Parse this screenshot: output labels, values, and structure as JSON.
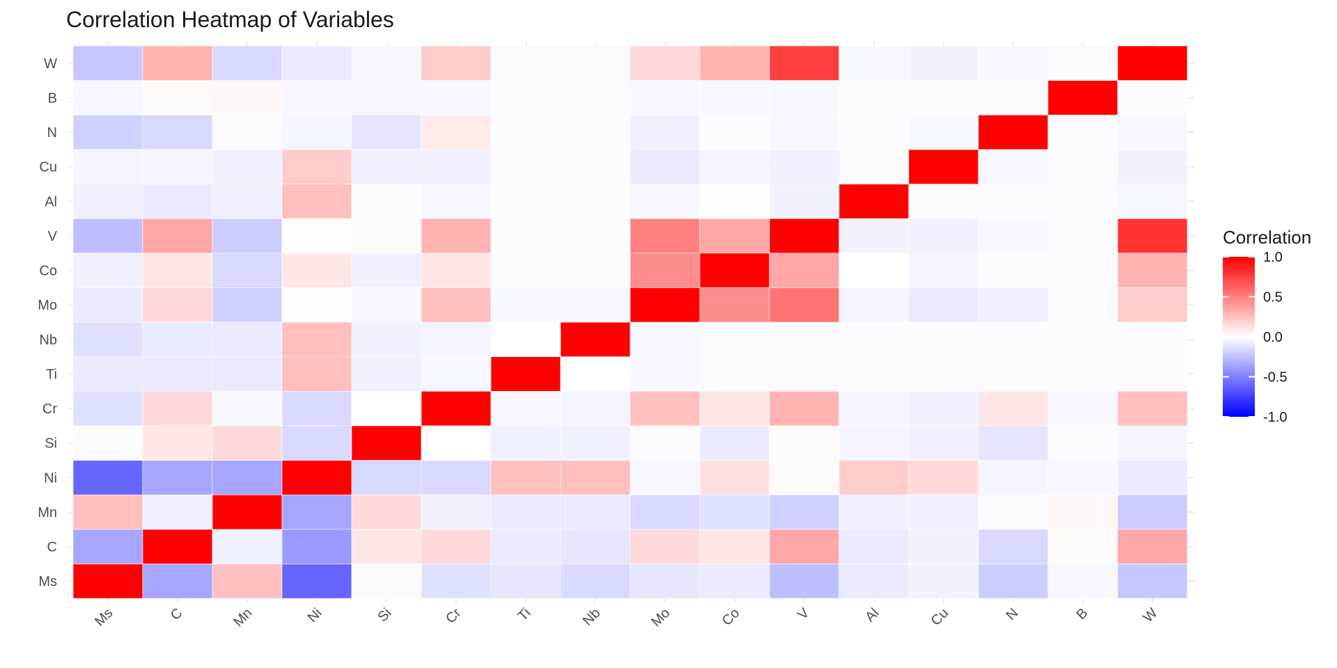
{
  "chart_data": {
    "type": "heatmap",
    "title": "Correlation Heatmap of Variables",
    "xlabel": "",
    "ylabel": "",
    "x_categories": [
      "Ms",
      "C",
      "Mn",
      "Ni",
      "Si",
      "Cr",
      "Ti",
      "Nb",
      "Mo",
      "Co",
      "V",
      "Al",
      "Cu",
      "N",
      "B",
      "W"
    ],
    "y_categories": [
      "Ms",
      "C",
      "Mn",
      "Ni",
      "Si",
      "Cr",
      "Ti",
      "Nb",
      "Mo",
      "Co",
      "V",
      "Al",
      "Cu",
      "N",
      "B",
      "W"
    ],
    "values": [
      [
        1.0,
        -0.35,
        0.25,
        -0.6,
        -0.02,
        -0.12,
        -0.1,
        -0.15,
        -0.1,
        -0.08,
        -0.25,
        -0.08,
        -0.05,
        -0.2,
        -0.03,
        -0.22
      ],
      [
        -0.35,
        1.0,
        -0.06,
        -0.4,
        0.1,
        0.15,
        -0.08,
        -0.1,
        0.15,
        0.1,
        0.35,
        -0.08,
        -0.05,
        -0.15,
        0.02,
        0.35
      ],
      [
        0.25,
        -0.06,
        1.0,
        -0.35,
        0.15,
        -0.05,
        -0.08,
        -0.08,
        -0.15,
        -0.12,
        -0.18,
        -0.06,
        -0.06,
        -0.02,
        0.03,
        -0.2
      ],
      [
        -0.6,
        -0.35,
        -0.35,
        1.0,
        -0.15,
        -0.15,
        0.25,
        0.25,
        -0.03,
        0.12,
        0.02,
        0.2,
        0.15,
        -0.04,
        -0.03,
        -0.08
      ],
      [
        -0.02,
        0.1,
        0.15,
        -0.15,
        1.0,
        0.0,
        -0.06,
        -0.06,
        -0.02,
        -0.08,
        0.02,
        -0.04,
        -0.06,
        -0.1,
        -0.02,
        -0.04
      ],
      [
        -0.12,
        0.15,
        -0.03,
        -0.15,
        0.0,
        1.0,
        -0.03,
        -0.04,
        0.25,
        0.1,
        0.3,
        -0.04,
        -0.06,
        0.1,
        -0.03,
        0.25
      ],
      [
        -0.08,
        -0.08,
        -0.08,
        0.25,
        -0.06,
        -0.03,
        1.0,
        0.0,
        -0.03,
        -0.02,
        -0.02,
        -0.02,
        -0.02,
        -0.02,
        -0.02,
        -0.02
      ],
      [
        -0.12,
        -0.08,
        -0.08,
        0.25,
        -0.06,
        -0.04,
        0.0,
        1.0,
        -0.03,
        -0.02,
        -0.02,
        -0.02,
        -0.02,
        -0.02,
        -0.02,
        -0.02
      ],
      [
        -0.08,
        0.15,
        -0.18,
        0.01,
        -0.03,
        0.25,
        -0.03,
        -0.03,
        1.0,
        0.45,
        0.55,
        -0.04,
        -0.08,
        -0.06,
        -0.02,
        0.2
      ],
      [
        -0.06,
        0.1,
        -0.15,
        0.1,
        -0.06,
        0.1,
        -0.01,
        -0.01,
        0.45,
        1.0,
        0.35,
        0.0,
        -0.04,
        -0.02,
        -0.02,
        0.3
      ],
      [
        -0.25,
        0.35,
        -0.2,
        0.01,
        0.02,
        0.3,
        -0.02,
        -0.02,
        0.5,
        0.35,
        1.0,
        -0.05,
        -0.06,
        -0.03,
        -0.02,
        0.8
      ],
      [
        -0.06,
        -0.08,
        -0.06,
        0.25,
        -0.02,
        -0.03,
        -0.01,
        -0.01,
        -0.03,
        0.01,
        -0.05,
        1.0,
        -0.02,
        -0.02,
        -0.02,
        -0.03
      ],
      [
        -0.04,
        -0.04,
        -0.06,
        0.2,
        -0.06,
        -0.06,
        -0.02,
        -0.02,
        -0.08,
        -0.04,
        -0.06,
        -0.02,
        1.0,
        -0.03,
        -0.02,
        -0.05
      ],
      [
        -0.18,
        -0.15,
        -0.02,
        -0.04,
        -0.1,
        0.08,
        -0.02,
        -0.02,
        -0.06,
        -0.02,
        -0.03,
        -0.02,
        -0.03,
        1.0,
        -0.02,
        -0.03
      ],
      [
        -0.03,
        0.02,
        0.03,
        -0.03,
        -0.03,
        -0.03,
        -0.02,
        -0.02,
        -0.03,
        -0.03,
        -0.03,
        -0.02,
        -0.02,
        -0.02,
        1.0,
        -0.02
      ],
      [
        -0.22,
        0.3,
        -0.15,
        -0.08,
        -0.03,
        0.2,
        -0.02,
        -0.02,
        0.15,
        0.3,
        0.75,
        -0.03,
        -0.05,
        -0.03,
        -0.02,
        1.0
      ]
    ],
    "color_scale": {
      "low": "#0000ff",
      "mid": "#ffffff",
      "high": "#ff0000",
      "limits": [
        -1,
        1
      ]
    },
    "legend": {
      "title": "Correlation",
      "ticks": [
        1.0,
        0.5,
        0.0,
        -0.5,
        -1.0
      ],
      "tick_labels": [
        "1.0",
        "0.5",
        "0.0",
        "-0.5",
        "-1.0"
      ],
      "position": "right"
    },
    "grid": true
  }
}
